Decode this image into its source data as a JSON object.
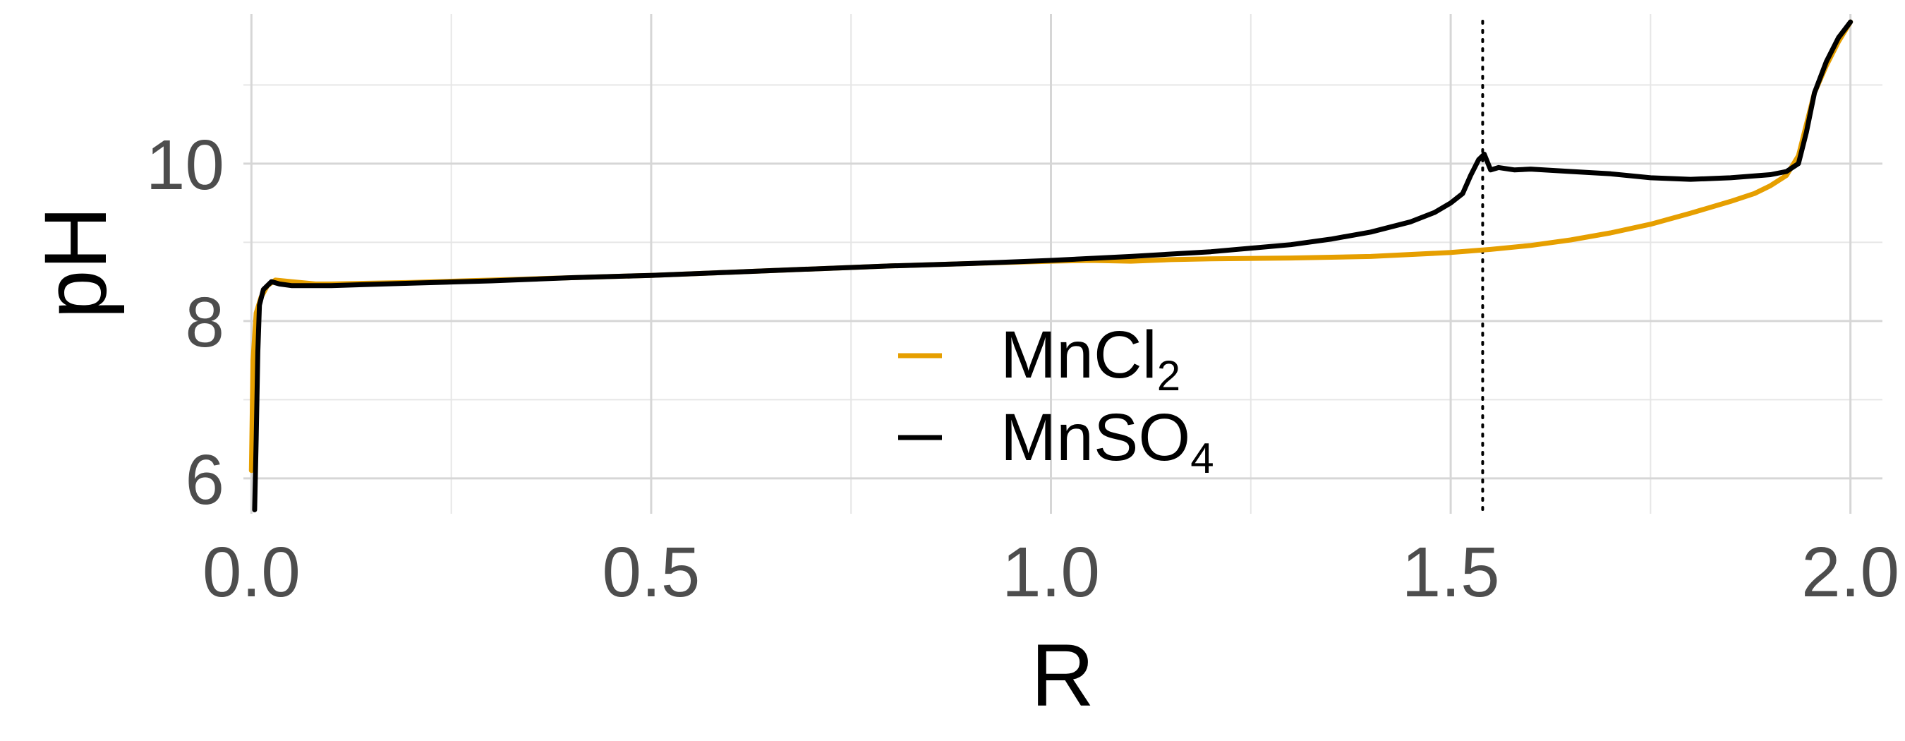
{
  "chart_data": {
    "type": "line",
    "xlabel": "R",
    "ylabel": "pH",
    "xlim": [
      -0.01,
      2.04
    ],
    "ylim": [
      5.55,
      11.9
    ],
    "xticks": [
      0.0,
      0.5,
      1.0,
      1.5,
      2.0
    ],
    "xtick_labels": [
      "0.0",
      "0.5",
      "1.0",
      "1.5",
      "2.0"
    ],
    "yticks": [
      6,
      8,
      10
    ],
    "ytick_labels": [
      "6",
      "8",
      "10"
    ],
    "grid": true,
    "legend_placement": "center",
    "reference_line": {
      "x": 1.54,
      "style": "dotted",
      "color": "#000000"
    },
    "legend": {
      "mncl2": {
        "base": "MnCl",
        "sub": "2",
        "color": "#E69F00"
      },
      "mnso4": {
        "base": "MnSO",
        "sub": "4",
        "color": "#000000"
      }
    },
    "series": [
      {
        "id": "mncl2",
        "color": "#E69F00",
        "points": [
          [
            0.0,
            6.1
          ],
          [
            0.002,
            7.5
          ],
          [
            0.006,
            8.1
          ],
          [
            0.012,
            8.3
          ],
          [
            0.02,
            8.45
          ],
          [
            0.03,
            8.52
          ],
          [
            0.05,
            8.5
          ],
          [
            0.08,
            8.47
          ],
          [
            0.1,
            8.47
          ],
          [
            0.2,
            8.49
          ],
          [
            0.3,
            8.52
          ],
          [
            0.4,
            8.55
          ],
          [
            0.5,
            8.58
          ],
          [
            0.6,
            8.62
          ],
          [
            0.7,
            8.66
          ],
          [
            0.8,
            8.7
          ],
          [
            0.9,
            8.73
          ],
          [
            1.0,
            8.76
          ],
          [
            1.05,
            8.77
          ],
          [
            1.1,
            8.76
          ],
          [
            1.15,
            8.78
          ],
          [
            1.2,
            8.79
          ],
          [
            1.3,
            8.8
          ],
          [
            1.4,
            8.82
          ],
          [
            1.5,
            8.87
          ],
          [
            1.55,
            8.91
          ],
          [
            1.6,
            8.96
          ],
          [
            1.65,
            9.03
          ],
          [
            1.7,
            9.12
          ],
          [
            1.75,
            9.23
          ],
          [
            1.8,
            9.37
          ],
          [
            1.85,
            9.52
          ],
          [
            1.88,
            9.62
          ],
          [
            1.9,
            9.72
          ],
          [
            1.92,
            9.85
          ],
          [
            1.935,
            10.1
          ],
          [
            1.945,
            10.5
          ],
          [
            1.955,
            10.9
          ],
          [
            1.97,
            11.25
          ],
          [
            1.985,
            11.55
          ],
          [
            2.0,
            11.8
          ]
        ]
      },
      {
        "id": "mnso4",
        "color": "#000000",
        "points": [
          [
            0.004,
            5.6
          ],
          [
            0.006,
            6.5
          ],
          [
            0.008,
            7.6
          ],
          [
            0.01,
            8.2
          ],
          [
            0.015,
            8.4
          ],
          [
            0.025,
            8.5
          ],
          [
            0.035,
            8.47
          ],
          [
            0.05,
            8.45
          ],
          [
            0.1,
            8.45
          ],
          [
            0.2,
            8.48
          ],
          [
            0.3,
            8.51
          ],
          [
            0.4,
            8.55
          ],
          [
            0.5,
            8.58
          ],
          [
            0.6,
            8.62
          ],
          [
            0.7,
            8.66
          ],
          [
            0.8,
            8.7
          ],
          [
            0.9,
            8.73
          ],
          [
            1.0,
            8.77
          ],
          [
            1.1,
            8.82
          ],
          [
            1.2,
            8.88
          ],
          [
            1.3,
            8.97
          ],
          [
            1.35,
            9.04
          ],
          [
            1.4,
            9.13
          ],
          [
            1.45,
            9.26
          ],
          [
            1.48,
            9.38
          ],
          [
            1.5,
            9.5
          ],
          [
            1.515,
            9.62
          ],
          [
            1.525,
            9.85
          ],
          [
            1.535,
            10.05
          ],
          [
            1.542,
            10.12
          ],
          [
            1.55,
            9.92
          ],
          [
            1.56,
            9.95
          ],
          [
            1.58,
            9.92
          ],
          [
            1.6,
            9.93
          ],
          [
            1.65,
            9.9
          ],
          [
            1.7,
            9.87
          ],
          [
            1.75,
            9.82
          ],
          [
            1.8,
            9.8
          ],
          [
            1.85,
            9.82
          ],
          [
            1.9,
            9.86
          ],
          [
            1.92,
            9.9
          ],
          [
            1.935,
            10.0
          ],
          [
            1.945,
            10.4
          ],
          [
            1.955,
            10.9
          ],
          [
            1.97,
            11.3
          ],
          [
            1.985,
            11.6
          ],
          [
            2.0,
            11.8
          ]
        ]
      }
    ]
  }
}
